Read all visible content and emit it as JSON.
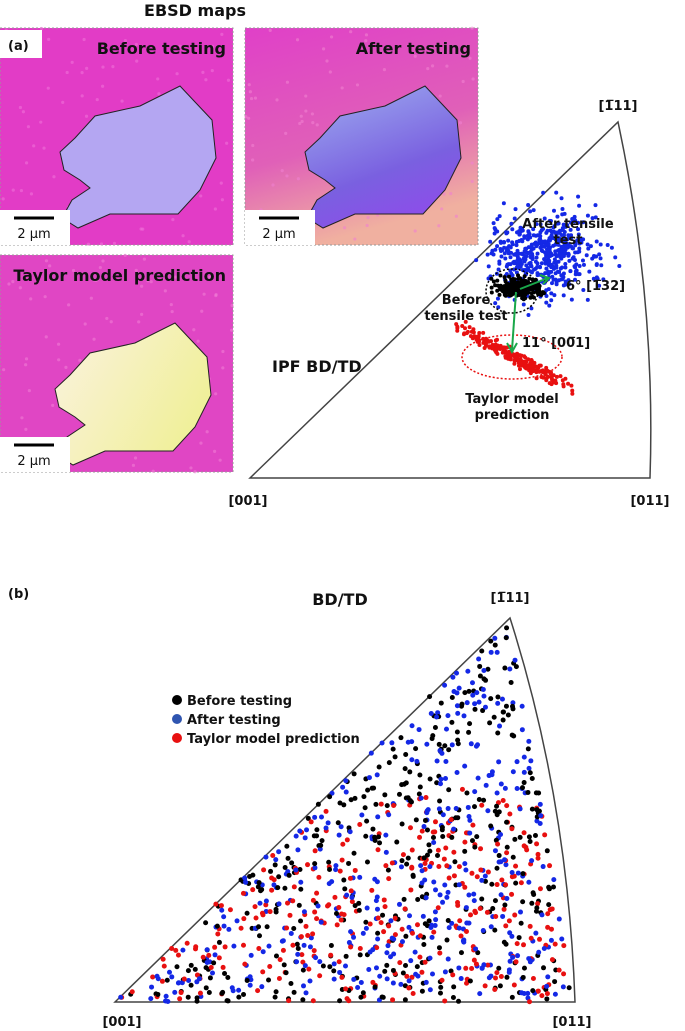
{
  "panel_a": {
    "label": "(a)",
    "title": "EBSD maps",
    "maps": [
      {
        "title": "Before testing",
        "scale_bar": "2 µm"
      },
      {
        "title": "After testing",
        "scale_bar": "2 µm"
      },
      {
        "title": "Taylor model prediction",
        "scale_bar": "2 µm"
      }
    ],
    "ipf": {
      "label": "IPF BD/TD",
      "top": "[1̅11]",
      "left": "[001]",
      "right": "[011]",
      "after": [
        "After tensile",
        "test"
      ],
      "before": [
        "Before",
        "tensile test"
      ],
      "rotation_after": "6° [1̅32]",
      "rotation_taylor": "11° [00̅1]",
      "taylor": [
        "Taylor model",
        "prediction"
      ]
    }
  },
  "panel_b": {
    "label": "(b)",
    "title": "BD/TD",
    "top": "[1̅11]",
    "left": "[001]",
    "right": "[011]",
    "legend": [
      "Before testing",
      "After testing",
      "Taylor model prediction"
    ]
  }
}
